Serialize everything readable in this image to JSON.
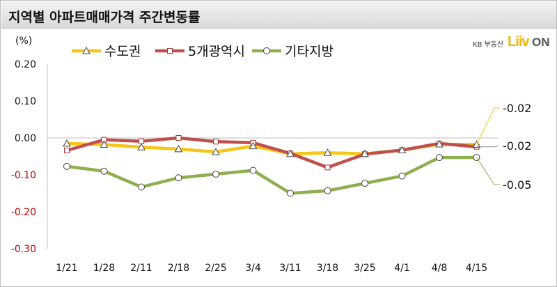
{
  "title": "지역별 아파트매매가격 주간변동률",
  "logo": {
    "kb_text": "KB 부동산",
    "liiv_text": "Liiv",
    "on_text": "ON"
  },
  "chart_data": {
    "type": "line",
    "unit_label": "(%)",
    "categories": [
      "1/21",
      "1/28",
      "2/11",
      "2/18",
      "2/25",
      "3/4",
      "3/11",
      "3/18",
      "3/25",
      "4/1",
      "4/8",
      "4/15"
    ],
    "ylim": [
      -0.3,
      0.2
    ],
    "yticks": [
      0.2,
      0.1,
      0.0,
      -0.1,
      -0.2,
      -0.3
    ],
    "ytick_labels": [
      "0.20",
      "0.10",
      "0.00",
      "-0.10",
      "-0.20",
      "-0.30"
    ],
    "grid": false,
    "legend_position": "top-left",
    "series": [
      {
        "name": "수도권",
        "color": "#f5c518",
        "marker": "triangle",
        "values": [
          -0.015,
          -0.018,
          -0.025,
          -0.03,
          -0.038,
          -0.022,
          -0.043,
          -0.04,
          -0.043,
          -0.033,
          -0.017,
          -0.018
        ]
      },
      {
        "name": "5개광역시",
        "color": "#c0504d",
        "marker": "square",
        "values": [
          -0.034,
          -0.005,
          -0.009,
          0.0,
          -0.01,
          -0.013,
          -0.042,
          -0.08,
          -0.044,
          -0.033,
          -0.015,
          -0.024
        ]
      },
      {
        "name": "기타지방",
        "color": "#8faf4f",
        "marker": "circle",
        "values": [
          -0.077,
          -0.09,
          -0.133,
          -0.108,
          -0.098,
          -0.088,
          -0.15,
          -0.143,
          -0.123,
          -0.103,
          -0.053,
          -0.053
        ]
      }
    ],
    "annotations": [
      {
        "text": "-0.02",
        "series": 0
      },
      {
        "text": "-0.02",
        "series": 1
      },
      {
        "text": "-0.05",
        "series": 2
      }
    ]
  }
}
